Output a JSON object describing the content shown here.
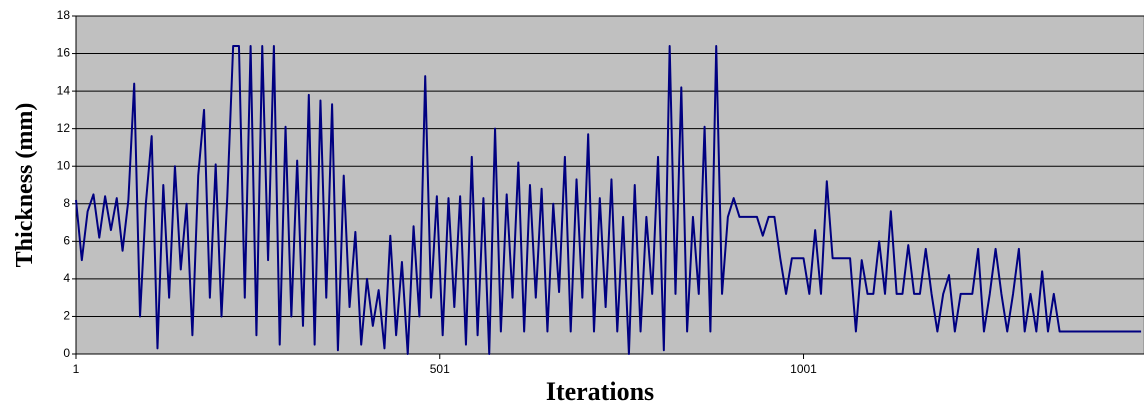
{
  "chart_data": {
    "type": "line",
    "x_label": "Iterations",
    "y_label": "Thickness (mm)",
    "x": [
      1,
      9,
      17,
      25,
      33,
      41,
      49,
      57,
      65,
      73,
      81,
      89,
      97,
      105,
      113,
      121,
      129,
      137,
      145,
      153,
      161,
      169,
      177,
      185,
      193,
      201,
      209,
      217,
      225,
      233,
      241,
      249,
      257,
      265,
      273,
      281,
      289,
      297,
      305,
      313,
      321,
      329,
      337,
      345,
      353,
      361,
      369,
      377,
      385,
      393,
      401,
      409,
      417,
      425,
      433,
      441,
      449,
      457,
      465,
      473,
      481,
      489,
      497,
      505,
      513,
      521,
      529,
      537,
      545,
      553,
      561,
      569,
      577,
      585,
      593,
      601,
      609,
      617,
      625,
      633,
      641,
      649,
      657,
      665,
      673,
      681,
      689,
      697,
      705,
      713,
      721,
      729,
      737,
      745,
      753,
      761,
      769,
      777,
      785,
      793,
      801,
      809,
      817,
      825,
      833,
      841,
      849,
      857,
      865,
      873,
      881,
      889,
      897,
      905,
      913,
      921,
      929,
      937,
      945,
      953,
      961,
      969,
      977,
      985,
      993,
      1001,
      1009,
      1017,
      1025,
      1033,
      1041,
      1049,
      1057,
      1065,
      1073,
      1081,
      1089,
      1097,
      1105,
      1113,
      1121,
      1129,
      1137,
      1145,
      1153,
      1161,
      1169,
      1177,
      1185,
      1193,
      1201,
      1209,
      1217,
      1225,
      1233,
      1241,
      1249,
      1257,
      1265,
      1273,
      1281,
      1289,
      1297,
      1305,
      1313,
      1321,
      1329,
      1337,
      1345,
      1353,
      1361,
      1369,
      1377,
      1385,
      1393,
      1401,
      1409,
      1417,
      1425,
      1433,
      1441,
      1449,
      1457,
      1465
    ],
    "values": [
      8.2,
      5,
      7.6,
      8.5,
      6.2,
      8.4,
      6.6,
      8.3,
      5.5,
      8.2,
      14.4,
      2,
      8,
      11.6,
      0.3,
      9,
      3,
      10,
      4.5,
      8,
      1,
      9.5,
      13,
      3,
      10.1,
      2,
      8.4,
      16.4,
      16.4,
      3,
      16.4,
      1,
      16.4,
      5,
      16.4,
      0.5,
      12.1,
      2,
      10.3,
      1.5,
      13.8,
      0.5,
      13.5,
      3,
      13.3,
      0.2,
      9.5,
      2.5,
      6.5,
      0.5,
      4,
      1.5,
      3.4,
      0.3,
      6.3,
      1,
      4.9,
      0,
      6.8,
      2,
      14.8,
      3,
      8.4,
      1,
      8.3,
      2.5,
      8.4,
      0.5,
      10.5,
      1,
      8.3,
      0,
      12,
      1.2,
      8.5,
      3,
      10.2,
      1.2,
      9,
      3,
      8.8,
      1.2,
      8,
      3.3,
      10.5,
      1.2,
      9.3,
      3,
      11.7,
      1.2,
      8.3,
      2.5,
      9.3,
      1.2,
      7.3,
      0,
      9,
      1.2,
      7.3,
      3.2,
      10.5,
      0.2,
      16.4,
      3.2,
      14.2,
      1.2,
      7.3,
      3.2,
      12.1,
      1.2,
      16.4,
      3.2,
      7.3,
      8.3,
      7.3,
      7.3,
      7.3,
      7.3,
      6.3,
      7.3,
      7.3,
      5.1,
      3.2,
      5.1,
      5.1,
      5.1,
      3.2,
      6.6,
      3.2,
      9.2,
      5.1,
      5.1,
      5.1,
      5.1,
      1.2,
      5,
      3.2,
      3.2,
      6,
      3.2,
      7.6,
      3.2,
      3.2,
      5.8,
      3.2,
      3.2,
      5.6,
      3.2,
      1.2,
      3.2,
      4.2,
      1.2,
      3.2,
      3.2,
      3.2,
      5.6,
      1.2,
      3.2,
      5.6,
      3.2,
      1.2,
      3.2,
      5.6,
      1.2,
      3.2,
      1.2,
      4.4,
      1.2,
      3.2,
      1.2,
      1.2,
      1.2,
      1.2,
      1.2,
      1.2,
      1.2,
      1.2,
      1.2,
      1.2,
      1.2,
      1.2,
      1.2,
      1.2,
      1.2
    ],
    "color": "#000080",
    "plot_background": "#c0c0c0",
    "xlim": [
      1,
      1469
    ],
    "xticks": [
      1,
      501,
      1001
    ],
    "ylim": [
      0,
      18
    ],
    "yticks": [
      0,
      2,
      4,
      6,
      8,
      10,
      12,
      14,
      16,
      18
    ],
    "grid": true
  }
}
